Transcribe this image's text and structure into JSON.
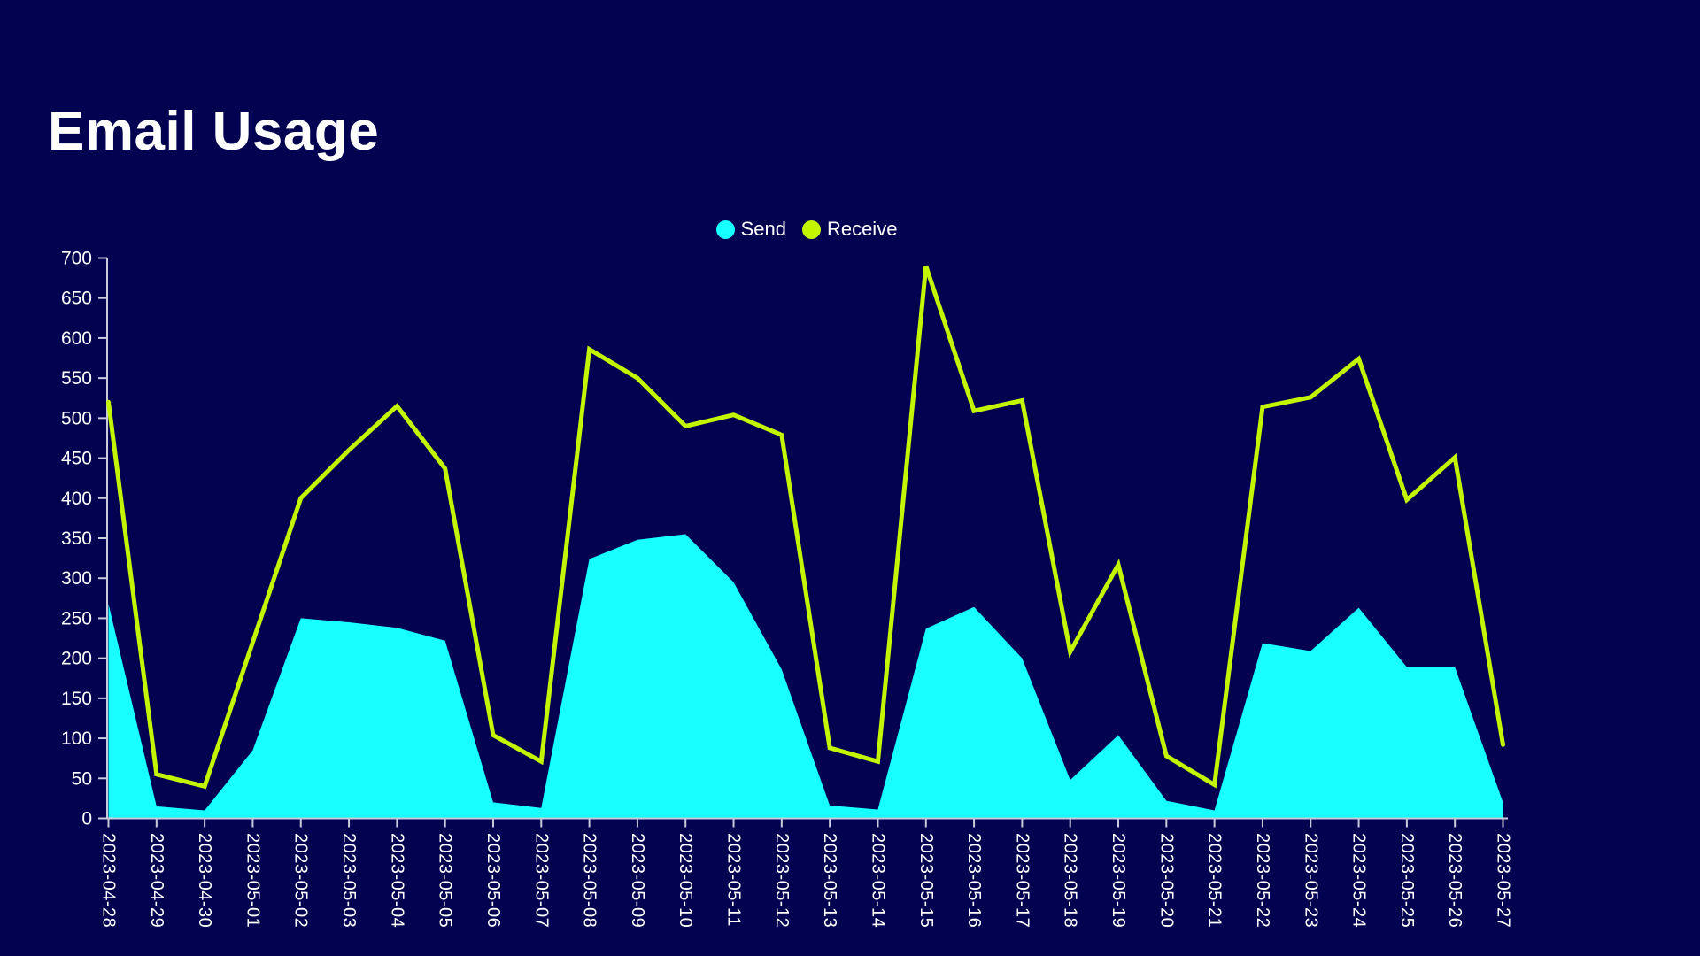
{
  "page": {
    "title": "Email Usage",
    "background_color": "#020250",
    "title_color": "#ffffff"
  },
  "legend": {
    "items": [
      {
        "label": "Send",
        "color": "#18FFFF"
      },
      {
        "label": "Receive",
        "color": "#C3F500"
      }
    ]
  },
  "chart_data": {
    "type": "area",
    "title": "Email Usage",
    "xlabel": "",
    "ylabel": "",
    "ylim": [
      0,
      700
    ],
    "ytick_step": 50,
    "grid": false,
    "legend_position": "top-center",
    "axis_color": "#C9CADB",
    "tick_label_color": "#FFFFFF",
    "categories": [
      "2023-04-28",
      "2023-04-29",
      "2023-04-30",
      "2023-05-01",
      "2023-05-02",
      "2023-05-03",
      "2023-05-04",
      "2023-05-05",
      "2023-05-06",
      "2023-05-07",
      "2023-05-08",
      "2023-05-09",
      "2023-05-10",
      "2023-05-11",
      "2023-05-12",
      "2023-05-13",
      "2023-05-14",
      "2023-05-15",
      "2023-05-16",
      "2023-05-17",
      "2023-05-18",
      "2023-05-19",
      "2023-05-20",
      "2023-05-21",
      "2023-05-22",
      "2023-05-23",
      "2023-05-24",
      "2023-05-25",
      "2023-05-26",
      "2023-05-27"
    ],
    "series": [
      {
        "name": "Send",
        "style": "filled-area",
        "color": "#18FFFF",
        "values": [
          268,
          15,
          10,
          85,
          250,
          245,
          238,
          222,
          20,
          13,
          324,
          348,
          355,
          295,
          186,
          16,
          11,
          237,
          264,
          200,
          48,
          104,
          22,
          10,
          219,
          209,
          263,
          189,
          189,
          20
        ]
      },
      {
        "name": "Receive",
        "style": "line",
        "color": "#C3F500",
        "values": [
          520,
          55,
          40,
          220,
          400,
          460,
          515,
          437,
          104,
          71,
          586,
          550,
          490,
          504,
          479,
          88,
          71,
          690,
          509,
          522,
          208,
          317,
          78,
          42,
          514,
          526,
          574,
          398,
          451,
          92
        ]
      }
    ]
  }
}
